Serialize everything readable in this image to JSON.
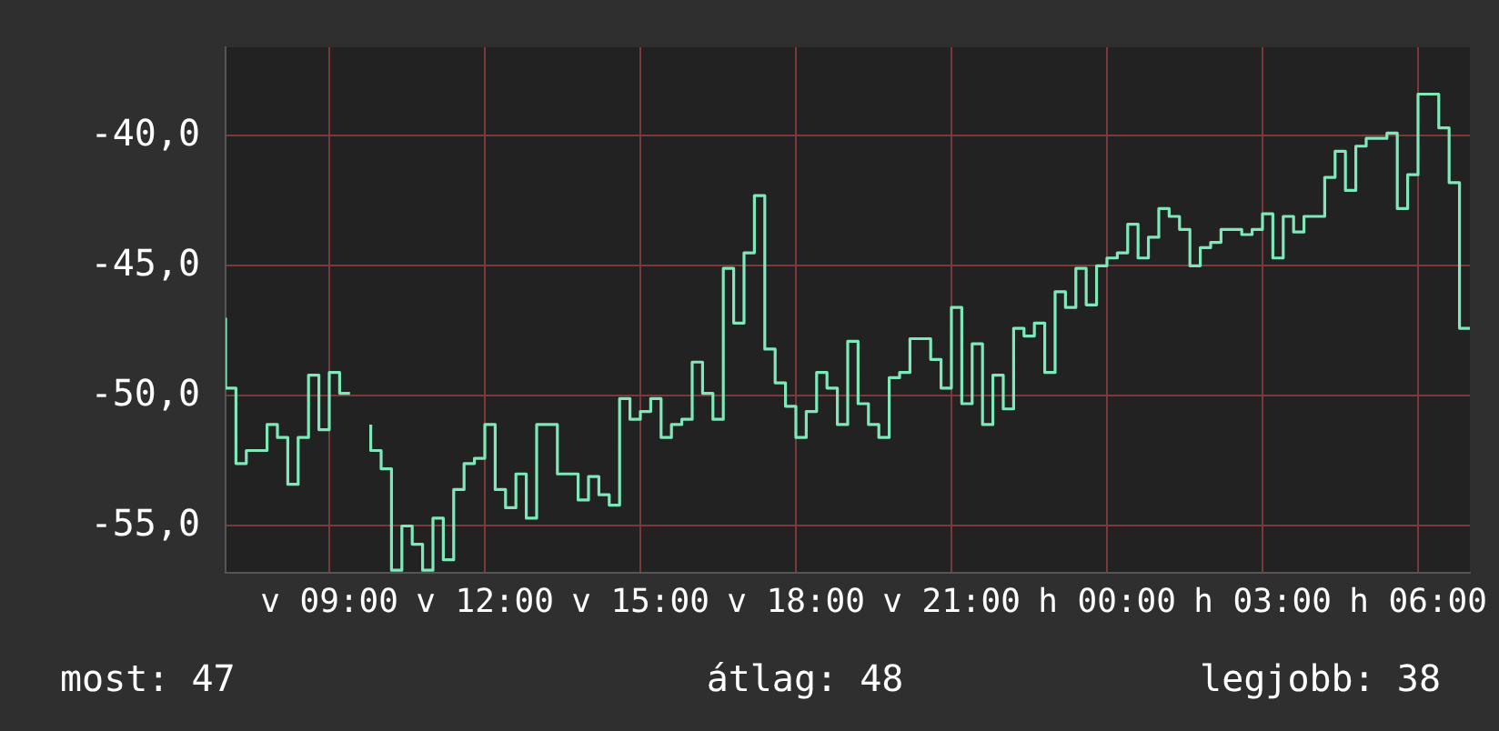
{
  "chart_data": {
    "type": "step",
    "marker": "none",
    "legend": false,
    "grid": true,
    "categories": [
      null,
      null,
      null,
      null,
      null,
      null,
      null,
      null,
      null,
      null,
      "v 09:00",
      null,
      null,
      null,
      null,
      null,
      null,
      null,
      null,
      null,
      null,
      null,
      null,
      null,
      null,
      "v 12:00",
      null,
      null,
      null,
      null,
      null,
      null,
      null,
      null,
      null,
      null,
      null,
      null,
      null,
      null,
      "v 15:00",
      null,
      null,
      null,
      null,
      null,
      null,
      null,
      null,
      null,
      null,
      null,
      null,
      null,
      null,
      "v 18:00",
      null,
      null,
      null,
      null,
      null,
      null,
      null,
      null,
      null,
      null,
      null,
      null,
      null,
      null,
      "v 21:00",
      null,
      null,
      null,
      null,
      null,
      null,
      null,
      null,
      null,
      null,
      null,
      null,
      null,
      null,
      "h 00:00",
      null,
      null,
      null,
      null,
      null,
      null,
      null,
      null,
      null,
      null,
      null,
      null,
      null,
      null,
      "h 03:00",
      null,
      null,
      null,
      null,
      null,
      null,
      null,
      null,
      null,
      null,
      null,
      null,
      null,
      null,
      "h 06:00",
      null,
      null,
      null,
      null,
      null
    ],
    "ylim": [
      -56.8,
      -36.6
    ],
    "yticks": [
      {
        "value": -55,
        "label": "-55,0"
      },
      {
        "value": -50,
        "label": "-50,0"
      },
      {
        "value": -45,
        "label": "-45,0"
      },
      {
        "value": -40,
        "label": "-40,0"
      }
    ],
    "annotations": [
      "most: 47",
      "átlag: 48",
      "legjobb: 38"
    ],
    "series": [
      {
        "color": "#7fe8b8",
        "values": [
          -47.0,
          -49.7,
          -52.6,
          -52.1,
          -52.1,
          -51.1,
          -51.6,
          -53.4,
          -51.6,
          -49.2,
          -51.3,
          -49.1,
          -49.9,
          null,
          -51.1,
          -52.1,
          -52.8,
          -56.7,
          -55.0,
          -55.7,
          -56.7,
          -54.7,
          -56.3,
          -53.6,
          -52.6,
          -52.4,
          -51.1,
          -53.6,
          -54.3,
          -53.0,
          -54.7,
          -51.1,
          -51.1,
          -53.0,
          -53.0,
          -54.0,
          -53.1,
          -53.8,
          -54.2,
          -50.1,
          -50.9,
          -50.6,
          -50.1,
          -51.6,
          -51.1,
          -50.9,
          -48.7,
          -49.9,
          -50.9,
          -45.1,
          -47.2,
          -44.5,
          -42.3,
          -48.2,
          -49.5,
          -50.4,
          -51.6,
          -50.6,
          -49.1,
          -49.7,
          -51.1,
          -47.9,
          -50.3,
          -51.1,
          -51.6,
          -49.3,
          -49.1,
          -47.8,
          -47.8,
          -48.6,
          -49.7,
          -46.6,
          -50.3,
          -48.0,
          -51.1,
          -49.2,
          -50.5,
          -47.4,
          -47.7,
          -47.2,
          -49.1,
          -46.0,
          -46.6,
          -45.1,
          -46.5,
          -45.0,
          -44.7,
          -44.5,
          -43.4,
          -44.7,
          -43.9,
          -42.8,
          -43.1,
          -43.6,
          -45.0,
          -44.3,
          -44.1,
          -43.6,
          -43.6,
          -43.8,
          -43.6,
          -43.0,
          -44.7,
          -43.1,
          -43.7,
          -43.1,
          -43.1,
          -41.6,
          -40.6,
          -42.1,
          -40.4,
          -40.1,
          -40.1,
          -39.9,
          -42.8,
          -41.5,
          -38.4,
          -38.4,
          -39.7,
          -41.8,
          -47.4
        ]
      }
    ]
  }
}
